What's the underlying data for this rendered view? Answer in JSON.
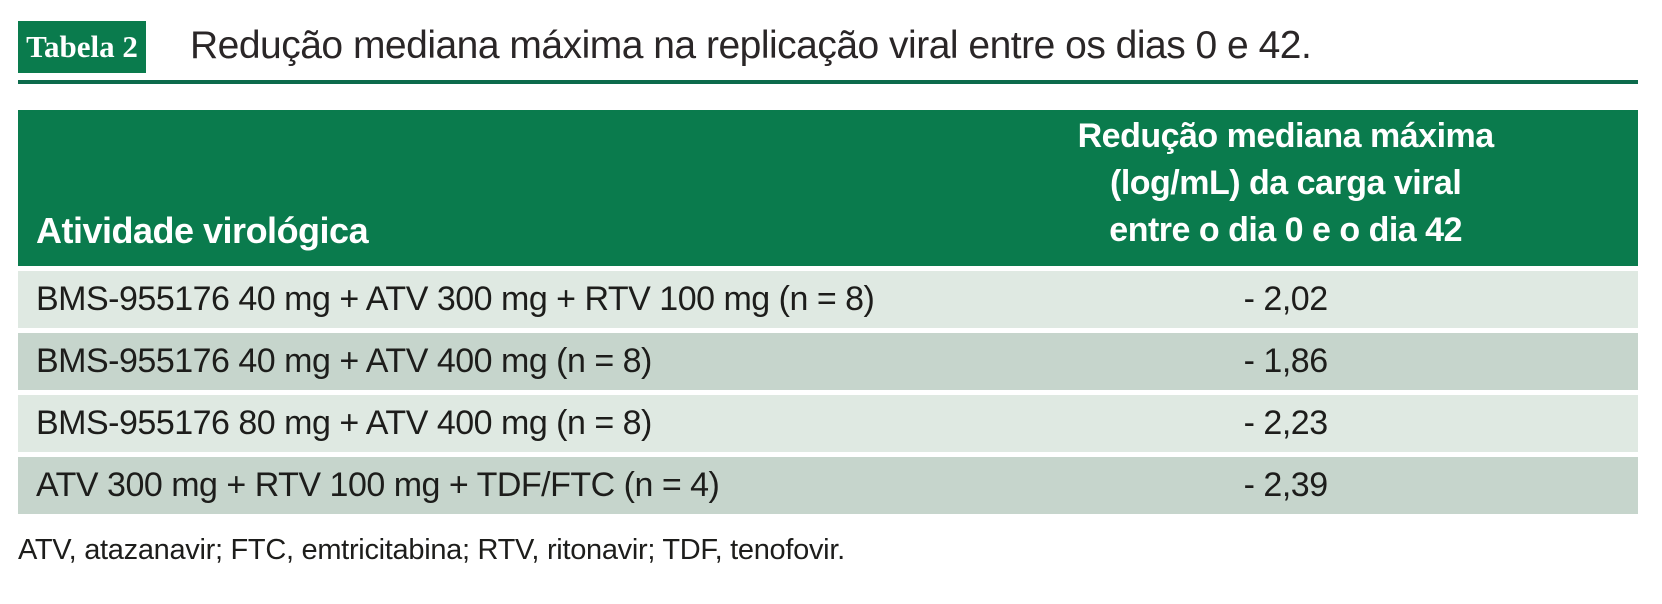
{
  "badge_label": "Tabela 2",
  "caption": "Redução mediana máxima na replicação viral entre os dias 0 e 42.",
  "table": {
    "col1_header": "Atividade virológica",
    "col2_header_lines": [
      "Redução mediana máxima",
      "(log/mL) da carga viral",
      "entre o dia 0 e o dia 42"
    ],
    "rows": [
      {
        "label": "BMS-955176 40 mg + ATV 300 mg + RTV 100 mg (n = 8)",
        "value": "- 2,02"
      },
      {
        "label": "BMS-955176 40 mg + ATV 400 mg (n = 8)",
        "value": "- 1,86"
      },
      {
        "label": "BMS-955176 80 mg + ATV 400 mg (n = 8)",
        "value": "- 2,23"
      },
      {
        "label": "ATV 300 mg + RTV 100 mg + TDF/FTC (n = 4)",
        "value": "- 2,39"
      }
    ]
  },
  "footnote": "ATV, atazanavir; FTC, emtricitabina; RTV, ritonavir; TDF, tenofovir.",
  "colors": {
    "header_green": "#0a7b4d",
    "rule_green": "#0d6b4c",
    "row_light": "#dfe9e2",
    "row_dark": "#c6d5cc",
    "text": "#1d1d1b",
    "header_text": "#ffffff"
  }
}
